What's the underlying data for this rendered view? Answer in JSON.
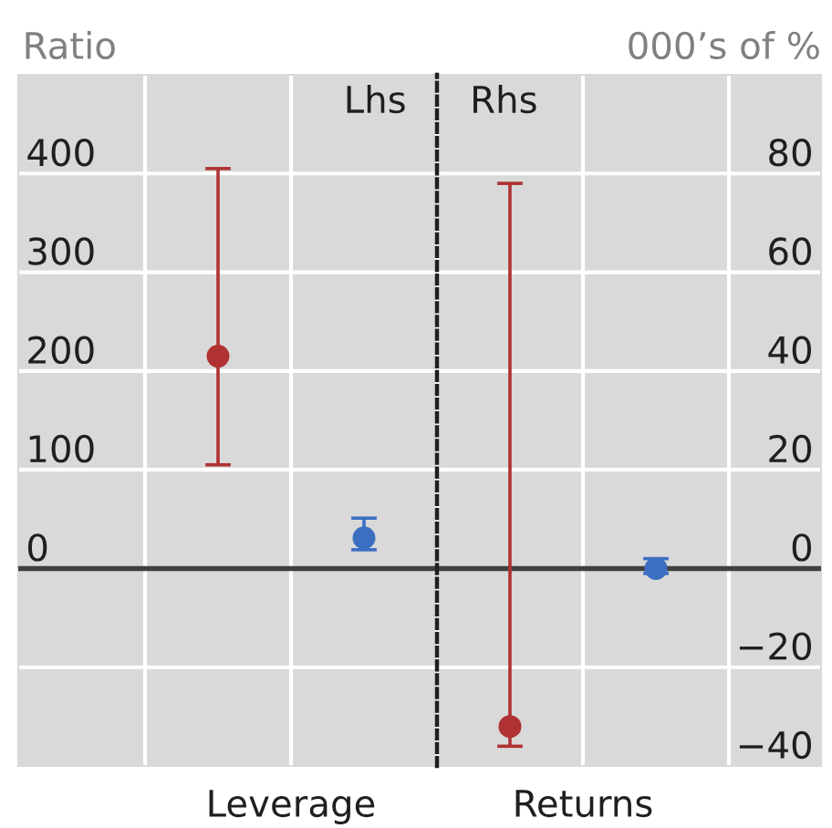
{
  "chart_data": [
    {
      "type": "scatter",
      "ylabel": "Ratio",
      "annotations": [
        "Lhs"
      ],
      "categories": [
        "Leverage"
      ],
      "series": [
        {
          "color": "#b03232",
          "values": [
            215
          ],
          "errors": [
            [
              105,
              405
            ]
          ]
        },
        {
          "color": "#3b6fc2",
          "values": [
            31
          ],
          "errors": [
            [
              19,
              51
            ]
          ]
        }
      ],
      "ylim": [
        -200,
        500
      ],
      "yticks": [
        {
          "value": -100,
          "label": null
        },
        0,
        100,
        200,
        300,
        400
      ],
      "ref_lines": [
        {
          "axis": "y",
          "value": 0,
          "color": "#404040"
        }
      ],
      "grid": true,
      "marker": "circle"
    },
    {
      "type": "scatter",
      "y2label": "000’s of %",
      "annotations": [
        "Rhs"
      ],
      "categories": [
        "Returns"
      ],
      "series": [
        {
          "color": "#b03232",
          "axis": "y2",
          "values": [
            -32
          ],
          "errors": [
            [
              -36,
              78
            ]
          ]
        },
        {
          "color": "#3b6fc2",
          "axis": "y2",
          "values": [
            0
          ],
          "errors": [
            [
              -1,
              2
            ]
          ]
        }
      ],
      "y2lim": [
        -40,
        100
      ],
      "y2ticks": [
        -40,
        -20,
        0,
        20,
        40,
        60,
        80
      ],
      "ref_lines": [
        {
          "axis": "y2",
          "value": 0,
          "color": "#404040"
        }
      ],
      "grid": true,
      "marker": "circle"
    }
  ]
}
